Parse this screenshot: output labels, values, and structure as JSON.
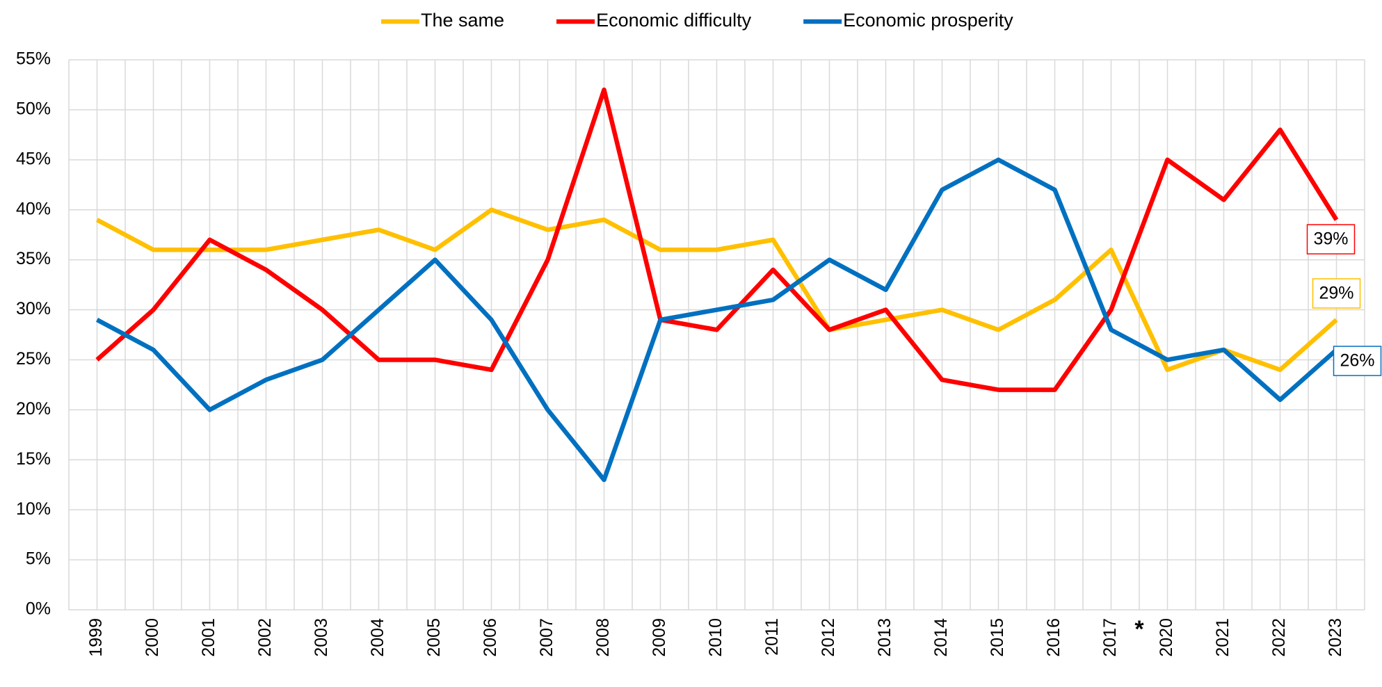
{
  "chart_data": {
    "type": "line",
    "categories": [
      "1999",
      "2000",
      "2001",
      "2002",
      "2003",
      "2004",
      "2005",
      "2006",
      "2007",
      "2008",
      "2009",
      "2010",
      "2011",
      "2012",
      "2013",
      "2014",
      "2015",
      "2016",
      "2017",
      "2020",
      "2021",
      "2022",
      "2023"
    ],
    "annotation": "*",
    "series": [
      {
        "name": "The same",
        "color": "#ffc000",
        "values": [
          39,
          36,
          36,
          36,
          37,
          38,
          36,
          40,
          38,
          39,
          36,
          36,
          37,
          28,
          29,
          30,
          28,
          31,
          36,
          24,
          26,
          24,
          29
        ],
        "value_labels": [
          null,
          null,
          null,
          null,
          null,
          null,
          null,
          null,
          null,
          null,
          null,
          null,
          null,
          null,
          null,
          null,
          null,
          null,
          null,
          null,
          null,
          null,
          "29%"
        ]
      },
      {
        "name": "Economic difficulty",
        "color": "#ff0000",
        "values": [
          25,
          30,
          37,
          34,
          30,
          25,
          25,
          24,
          35,
          52,
          29,
          28,
          34,
          28,
          30,
          23,
          22,
          22,
          30,
          45,
          41,
          48,
          39
        ],
        "value_labels": [
          null,
          null,
          null,
          null,
          null,
          null,
          null,
          null,
          null,
          null,
          null,
          null,
          null,
          null,
          null,
          null,
          null,
          null,
          null,
          null,
          null,
          null,
          "39%"
        ]
      },
      {
        "name": "Economic prosperity",
        "color": "#0070c0",
        "values": [
          29,
          26,
          20,
          23,
          25,
          30,
          35,
          29,
          20,
          13,
          29,
          30,
          31,
          35,
          32,
          42,
          45,
          42,
          28,
          25,
          26,
          21,
          26
        ],
        "value_labels": [
          null,
          null,
          null,
          null,
          null,
          null,
          null,
          null,
          null,
          null,
          null,
          null,
          null,
          null,
          null,
          null,
          null,
          null,
          null,
          null,
          null,
          null,
          "26%"
        ]
      }
    ],
    "ylim": [
      0,
      55
    ],
    "yticks": [
      {
        "value": 0,
        "label": "0%"
      },
      {
        "value": 5,
        "label": "5%"
      },
      {
        "value": 10,
        "label": "10%"
      },
      {
        "value": 15,
        "label": "15%"
      },
      {
        "value": 20,
        "label": "20%"
      },
      {
        "value": 25,
        "label": "25%"
      },
      {
        "value": 30,
        "label": "30%"
      },
      {
        "value": 35,
        "label": "35%"
      },
      {
        "value": 40,
        "label": "40%"
      },
      {
        "value": 45,
        "label": "45%"
      },
      {
        "value": 50,
        "label": "50%"
      },
      {
        "value": 55,
        "label": "55%"
      }
    ],
    "grid": true,
    "legend": "top"
  }
}
